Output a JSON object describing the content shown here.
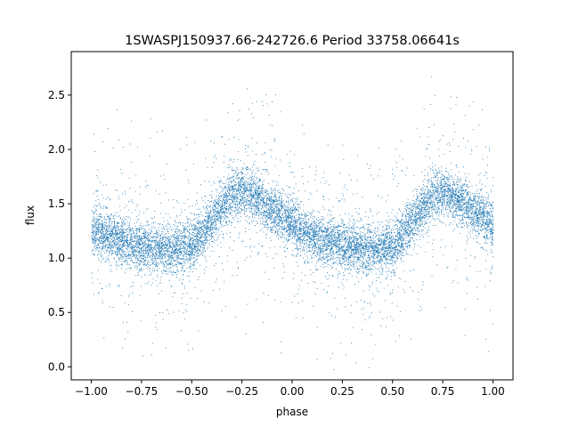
{
  "chart_data": {
    "type": "scatter",
    "title": "1SWASPJ150937.66-242726.6 Period 33758.06641s",
    "xlabel": "phase",
    "ylabel": "flux",
    "xlim": [
      -1.1,
      1.1
    ],
    "ylim": [
      -0.12,
      2.9
    ],
    "xticks": [
      -1.0,
      -0.75,
      -0.5,
      -0.25,
      0.0,
      0.25,
      0.5,
      0.75,
      1.0
    ],
    "xtick_labels": [
      "−1.00",
      "−0.75",
      "−0.50",
      "−0.25",
      "0.00",
      "0.25",
      "0.50",
      "0.75",
      "1.00"
    ],
    "yticks": [
      0.0,
      0.5,
      1.0,
      1.5,
      2.0,
      2.5
    ],
    "ytick_labels": [
      "0.0",
      "0.5",
      "1.0",
      "1.5",
      "2.0",
      "2.5"
    ],
    "grid": false,
    "legend": "none",
    "marker_color": "#1f77b4",
    "series": [
      {
        "x": [
          -1.0,
          -0.9,
          -0.8,
          -0.7,
          -0.6,
          -0.5,
          -0.4,
          -0.3,
          -0.25,
          -0.2,
          -0.1,
          0.0,
          0.1,
          0.2,
          0.3,
          0.4,
          0.5,
          0.6,
          0.7,
          0.75,
          0.8,
          0.9,
          1.0
        ],
        "y": [
          1.26,
          1.19,
          1.13,
          1.1,
          1.08,
          1.13,
          1.35,
          1.58,
          1.62,
          1.58,
          1.44,
          1.32,
          1.2,
          1.14,
          1.1,
          1.08,
          1.11,
          1.35,
          1.58,
          1.62,
          1.58,
          1.45,
          1.3
        ],
        "spread": 0.11,
        "point_count": 11000
      }
    ]
  }
}
